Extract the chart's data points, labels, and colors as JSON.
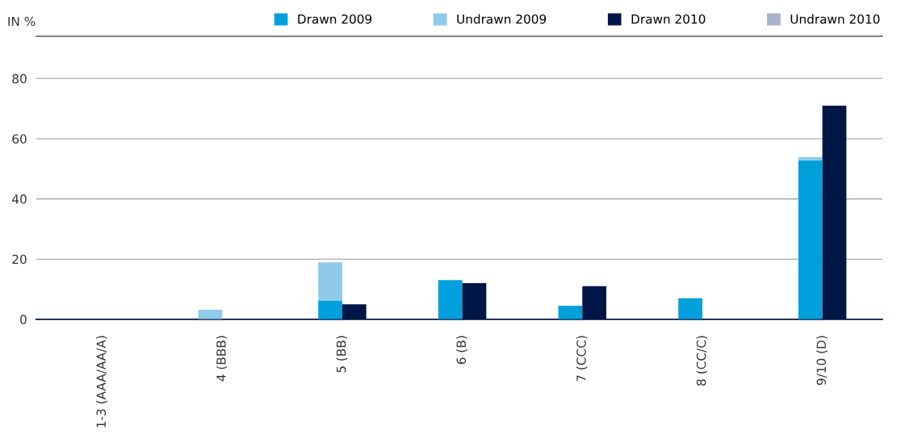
{
  "chart_data": {
    "type": "bar",
    "ylabel": "IN %",
    "categories": [
      "1-3 (AAA/AA/A)",
      "4 (BBB)",
      "5 (BB)",
      "6 (B)",
      "7 (CCC)",
      "8 (CC/C)",
      "9/10 (D)"
    ],
    "series": [
      {
        "name": "Drawn 2009",
        "color": "#00a0dc",
        "values": [
          0,
          0,
          6.1,
          13,
          4.5,
          7,
          52.8
        ]
      },
      {
        "name": "Undrawn 2009",
        "color": "#8ecae9",
        "base": [
          null,
          0,
          6.1,
          null,
          null,
          null,
          52.8
        ],
        "values": [
          null,
          3.2,
          12.8,
          null,
          null,
          null,
          1.1
        ]
      },
      {
        "name": "Drawn 2010",
        "color": "#001647",
        "values": [
          0,
          0,
          5,
          12,
          11,
          0,
          71
        ]
      },
      {
        "name": "Undrawn 2010",
        "color": "#aab0cc",
        "base": [
          null,
          null,
          null,
          null,
          null,
          null,
          null
        ],
        "values": [
          null,
          null,
          null,
          null,
          null,
          null,
          null
        ]
      }
    ],
    "ylim": [
      0,
      94
    ],
    "yticks": [
      0,
      20,
      40,
      60,
      80
    ],
    "grid": "y",
    "legend": "top right"
  }
}
